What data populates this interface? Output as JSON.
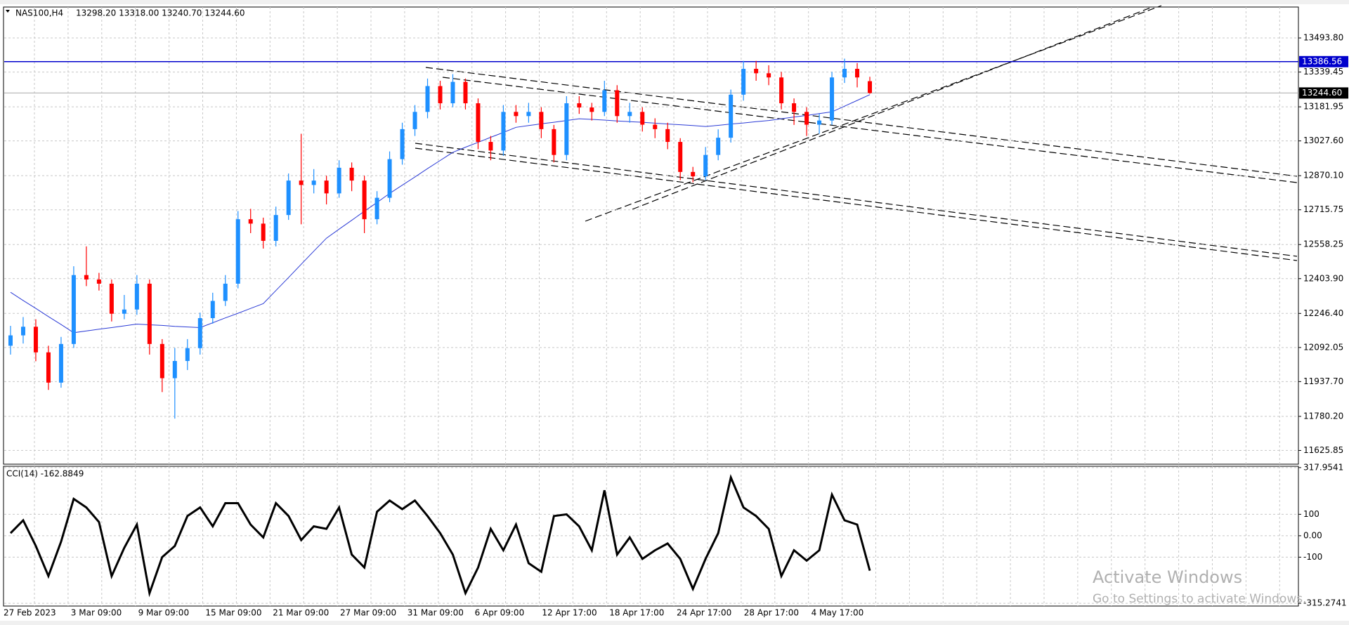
{
  "header": {
    "symbol": "NAS100,H4",
    "ohlc": "13298.20 13318.00 13240.70 13244.60"
  },
  "chart_data": {
    "type": "candlestick",
    "open": [
      12100,
      12147,
      12186,
      12070,
      11933,
      12108,
      12420,
      12400,
      12381,
      12245,
      12264,
      12381,
      12108,
      11953,
      12031,
      12089,
      12225,
      12303,
      12381,
      12673,
      12653,
      12575,
      12692,
      12848,
      12828,
      12848,
      12790,
      12906,
      12848,
      12673,
      12770,
      12945,
      13081,
      13159,
      13276,
      13198,
      13295,
      13198,
      13023,
      12984,
      13159,
      13140,
      13159,
      13081,
      12964,
      13198,
      13179,
      13159,
      13257,
      13140,
      13159,
      13101,
      13081,
      13023,
      12887,
      12867,
      12964,
      13042,
      13237,
      13354,
      13334,
      13315,
      13198,
      13159,
      13101,
      13120,
      13315,
      13354,
      13298.2
    ],
    "high": [
      12190,
      12230,
      12220,
      12100,
      12140,
      12460,
      12550,
      12430,
      12400,
      12330,
      12420,
      12400,
      12130,
      12090,
      12130,
      12250,
      12340,
      12420,
      12710,
      12720,
      12680,
      12730,
      12880,
      13060,
      12900,
      12870,
      12940,
      12930,
      12870,
      12800,
      12980,
      13110,
      13190,
      13310,
      13300,
      13330,
      13310,
      13220,
      13050,
      13190,
      13190,
      13200,
      13180,
      13100,
      13230,
      13230,
      13200,
      13300,
      13280,
      13200,
      13180,
      13130,
      13110,
      13040,
      12910,
      13000,
      13080,
      13260,
      13390,
      13390,
      13370,
      13340,
      13220,
      13180,
      13150,
      13340,
      13400,
      13380,
      13318
    ],
    "low": [
      12060,
      12110,
      12030,
      11900,
      11910,
      12090,
      12370,
      12350,
      12210,
      12220,
      12240,
      12060,
      11890,
      11770,
      11990,
      12060,
      12200,
      12280,
      12360,
      12610,
      12540,
      12550,
      12670,
      12650,
      12790,
      12740,
      12770,
      12800,
      12610,
      12650,
      12750,
      12920,
      13050,
      13130,
      13170,
      13180,
      13170,
      12990,
      12940,
      12960,
      13110,
      13110,
      13040,
      12930,
      12940,
      13150,
      13120,
      13140,
      13110,
      13110,
      13070,
      13040,
      12990,
      12850,
      12840,
      12850,
      12940,
      13020,
      13210,
      13300,
      13280,
      13170,
      13100,
      13050,
      13060,
      13100,
      13290,
      13270,
      13240.7
    ],
    "close": [
      12147,
      12186,
      12070,
      11933,
      12108,
      12420,
      12400,
      12381,
      12245,
      12264,
      12381,
      12108,
      11953,
      12031,
      12089,
      12225,
      12303,
      12381,
      12673,
      12653,
      12575,
      12692,
      12848,
      12828,
      12848,
      12790,
      12906,
      12848,
      12673,
      12770,
      12945,
      13081,
      13159,
      13276,
      13198,
      13295,
      13198,
      13023,
      12984,
      13159,
      13140,
      13159,
      13081,
      12964,
      13198,
      13179,
      13159,
      13257,
      13140,
      13159,
      13101,
      13081,
      13023,
      12887,
      12867,
      12964,
      13042,
      13237,
      13354,
      13334,
      13315,
      13198,
      13159,
      13101,
      13120,
      13315,
      13354,
      13315,
      13244.6
    ],
    "ma": {
      "color": "#2b3bd6",
      "values": [
        12342,
        12305,
        12269,
        12232,
        12196,
        12159,
        12167,
        12175,
        12182,
        12190,
        12198,
        12195,
        12192,
        12188,
        12185,
        12182,
        12204,
        12226,
        12247,
        12269,
        12291,
        12350,
        12409,
        12469,
        12528,
        12587,
        12628,
        12668,
        12709,
        12749,
        12790,
        12827,
        12864,
        12902,
        12939,
        12976,
        12999,
        13021,
        13044,
        13066,
        13089,
        13097,
        13105,
        13112,
        13120,
        13128,
        13125,
        13122,
        13118,
        13115,
        13112,
        13108,
        13104,
        13101,
        13097,
        13093,
        13098,
        13104,
        13109,
        13115,
        13120,
        13128,
        13136,
        13143,
        13151,
        13159,
        13185,
        13211,
        13237
      ]
    },
    "up_color": "#1e90ff",
    "down_color": "#ff0000",
    "grid": true,
    "ylim": [
      11563.6,
      13633.9
    ],
    "yticks": [
      {
        "value": 13493.8,
        "label": "13493.80"
      },
      13339.45,
      13181.95,
      {
        "value": 13027.6,
        "label": "13027.60"
      },
      {
        "value": 12870.1,
        "label": "12870.10"
      },
      12715.75,
      12558.25,
      {
        "value": 12403.9,
        "label": "12403.90"
      },
      {
        "value": 12246.4,
        "label": "12246.40"
      },
      12092.05,
      {
        "value": 11937.7,
        "label": "11937.70"
      },
      {
        "value": 11780.2,
        "label": "11780.20"
      },
      11625.85
    ],
    "hlines": [
      {
        "value": 13386.56,
        "color": "#0000cc"
      }
    ],
    "last_price": {
      "value": 13244.6,
      "label": "13244.60"
    },
    "xtick_labels": [
      "27 Feb 2023",
      "3 Mar 09:00",
      "9 Mar 09:00",
      "15 Mar 09:00",
      "21 Mar 09:00",
      "27 Mar 09:00",
      "31 Mar 09:00",
      "6 Apr 09:00",
      "12 Apr 17:00",
      "18 Apr 17:00",
      "24 Apr 17:00",
      "28 Apr 17:00",
      "4 May 17:00"
    ]
  },
  "indicator": {
    "type": "line",
    "label": "CCI(14) -162.8849",
    "color": "#000000",
    "values": [
      12,
      72,
      -48,
      -188,
      -28,
      172,
      132,
      64,
      -188,
      -56,
      52,
      -268,
      -100,
      -48,
      92,
      132,
      44,
      152,
      152,
      52,
      -8,
      152,
      92,
      -20,
      44,
      32,
      132,
      -88,
      -148,
      112,
      164,
      124,
      164,
      92,
      12,
      -88,
      -268,
      -148,
      32,
      -68,
      52,
      -128,
      -168,
      92,
      100,
      44,
      -68,
      212,
      -88,
      -8,
      -108,
      -68,
      -36,
      -108,
      -248,
      -108,
      12,
      272,
      132,
      92,
      32,
      -188,
      -68,
      -116,
      -68,
      192,
      72,
      52,
      -162.8849
    ],
    "ylim": [
      -328,
      324
    ],
    "yticks": [
      317.9541,
      100,
      {
        "value": 0,
        "label": "0.00"
      },
      -100,
      -315.2741
    ]
  },
  "watermark": {
    "title": "Activate Windows",
    "subtitle": "Go to Settings to activate Windows."
  }
}
